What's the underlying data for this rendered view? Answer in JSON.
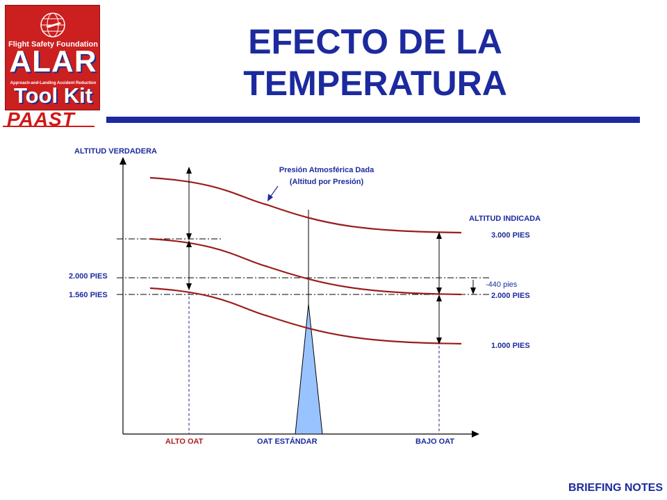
{
  "logo": {
    "foundation": "Flight Safety Foundation",
    "alar": "ALAR",
    "subtitle": "Approach-and-Landing Accident Reduction",
    "toolkit": "Tool Kit",
    "paast": "PAAST"
  },
  "title": {
    "line1": "EFECTO DE LA",
    "line2": "TEMPERATURA"
  },
  "footer": "BRIEFING NOTES",
  "diagram": {
    "y_axis_label": "ALTITUD VERDADERA",
    "pressure_label_line1": "Presión Atmosférica Dada",
    "pressure_label_line2": "(Altitud por Presión)",
    "indicated_label": "ALTITUD INDICADA",
    "left_ticks": [
      "2.000 PIES",
      "1.560 PIES"
    ],
    "right_labels": [
      "3.000 PIES",
      "2.000 PIES",
      "1.000 PIES"
    ],
    "difference_label": "-440 pies",
    "x_labels": [
      "ALTO OAT",
      "OAT ESTÁNDAR",
      "BAJO OAT"
    ],
    "colors": {
      "text": "#1c2a9e",
      "curve": "#9b1c1c",
      "triangle": "#99c3ff"
    }
  }
}
